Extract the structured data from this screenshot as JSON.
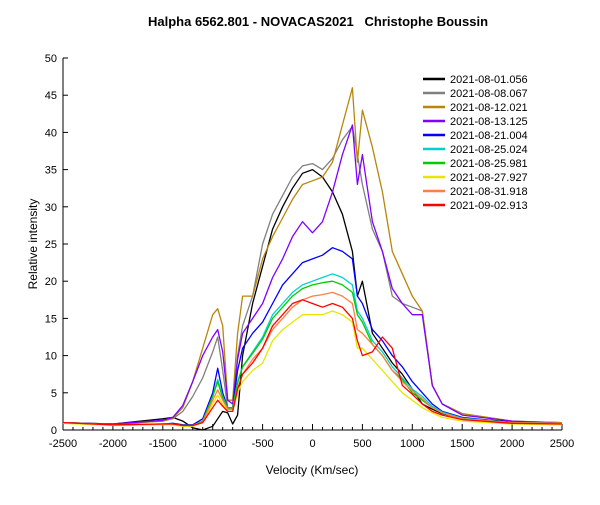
{
  "chart_data": {
    "type": "line",
    "title": "Halpha 6562.801 - NOVACAS2021   Christophe Boussin",
    "xlabel": "Velocity (Km/sec)",
    "ylabel": "Relative intensity",
    "xlim": [
      -2500,
      2500
    ],
    "ylim": [
      0,
      50
    ],
    "xticks": [
      -2500,
      -2000,
      -1500,
      -1000,
      -500,
      0,
      500,
      1000,
      1500,
      2000,
      2500
    ],
    "xtick_labels": [
      "-2500",
      "-2000",
      "-1500",
      "-1000",
      "-500",
      "0",
      "500",
      "1000",
      "1500",
      "2000",
      "2500"
    ],
    "yticks": [
      0,
      5,
      10,
      15,
      20,
      25,
      30,
      35,
      40,
      45,
      50
    ],
    "ytick_labels": [
      "0",
      "5",
      "10",
      "15",
      "20",
      "25",
      "30",
      "35",
      "40",
      "45",
      "50"
    ],
    "grid": false,
    "legend_position": "top-right",
    "x": [
      -2500,
      -2000,
      -1500,
      -1400,
      -1300,
      -1200,
      -1100,
      -1000,
      -950,
      -900,
      -850,
      -800,
      -750,
      -700,
      -600,
      -500,
      -400,
      -300,
      -200,
      -100,
      0,
      100,
      200,
      300,
      400,
      450,
      500,
      600,
      700,
      800,
      900,
      1000,
      1100,
      1200,
      1300,
      1500,
      2000,
      2500
    ],
    "series": [
      {
        "name": "2021-08-01.056",
        "color": "#000000",
        "values": [
          1,
          0.8,
          1.5,
          1.7,
          1.2,
          0.3,
          0,
          0.5,
          1.5,
          2.5,
          2.3,
          0.8,
          2,
          10,
          17,
          22,
          27,
          30,
          32.5,
          34.5,
          35,
          34,
          32,
          29,
          24,
          18,
          20,
          13,
          11,
          9,
          7.5,
          5.5,
          3.5,
          2.8,
          2.2,
          1.6,
          1.1,
          1
        ]
      },
      {
        "name": "2021-08-08.067",
        "color": "#808080",
        "values": [
          1,
          0.8,
          1.2,
          1.5,
          2.5,
          4.5,
          7,
          10.5,
          12.5,
          8,
          3,
          3,
          10,
          14,
          18,
          25,
          29,
          31.5,
          34,
          35.5,
          35.8,
          35,
          36.5,
          39,
          40.8,
          37,
          33,
          27,
          24,
          18,
          17,
          16.5,
          16,
          6,
          3.5,
          2.2,
          1.2,
          1
        ]
      },
      {
        "name": "2021-08-12.021",
        "color": "#b8860b",
        "values": [
          1,
          0.8,
          1.2,
          1.6,
          3,
          6.5,
          11,
          15.5,
          16.3,
          14,
          4,
          4,
          13,
          18,
          18,
          23,
          26,
          28.5,
          31,
          33,
          33.5,
          34,
          36,
          41,
          46,
          36,
          43,
          38,
          32,
          24,
          21,
          18,
          16,
          6,
          3.5,
          2.2,
          1.2,
          1
        ]
      },
      {
        "name": "2021-08-13.125",
        "color": "#8000ff",
        "values": [
          1,
          0.8,
          1.3,
          1.7,
          3.3,
          6.5,
          10,
          12.5,
          13.5,
          10.5,
          4,
          3.5,
          9.5,
          13,
          15,
          17,
          20.5,
          23,
          26,
          28,
          26.5,
          28,
          32,
          37,
          41,
          33,
          37,
          28,
          24,
          19,
          17,
          15.5,
          15.5,
          6,
          3.5,
          2,
          1.2,
          0.9
        ]
      },
      {
        "name": "2021-08-21.004",
        "color": "#0000ff",
        "values": [
          1,
          0.7,
          0.8,
          0.9,
          0.7,
          0.7,
          1.5,
          5,
          8.3,
          5,
          3,
          3,
          8,
          11,
          13,
          14.5,
          17,
          19.5,
          21,
          22.5,
          23,
          23.5,
          24.5,
          24,
          23,
          18,
          17,
          13.5,
          12,
          10,
          8.5,
          6.5,
          5,
          3.5,
          2.5,
          1.7,
          1,
          0.9
        ]
      },
      {
        "name": "2021-08-25.024",
        "color": "#00d0d0",
        "values": [
          1,
          0.7,
          0.8,
          0.8,
          0.6,
          0.6,
          1.2,
          4.5,
          6.8,
          4.5,
          3,
          3,
          6.5,
          8.5,
          10.5,
          12.5,
          15.5,
          17,
          18.5,
          19.5,
          20,
          20.5,
          21,
          20.5,
          19.5,
          16,
          15,
          12,
          10.5,
          8.5,
          7,
          5.5,
          4.5,
          3.2,
          2.4,
          1.6,
          1,
          0.9
        ]
      },
      {
        "name": "2021-08-25.981",
        "color": "#00cc00",
        "values": [
          1,
          0.7,
          0.8,
          0.8,
          0.6,
          0.6,
          1.2,
          4.5,
          6.5,
          4.3,
          3,
          3,
          6.3,
          8.5,
          10.3,
          12.2,
          15,
          16.5,
          18,
          19,
          19.5,
          19.8,
          20,
          19.5,
          18.5,
          15.5,
          14.5,
          11.5,
          10,
          8,
          6.8,
          5,
          4,
          3,
          2.3,
          1.5,
          1,
          0.9
        ]
      },
      {
        "name": "2021-08-27.927",
        "color": "#e6e600",
        "values": [
          0.9,
          0.6,
          0.7,
          0.7,
          0.5,
          0.5,
          1,
          3.5,
          4.7,
          3.5,
          2.5,
          2.5,
          5,
          6.5,
          8,
          9,
          12,
          13.5,
          14.5,
          15.5,
          15.5,
          15.5,
          16,
          15.5,
          14.5,
          11,
          11,
          9.5,
          8,
          6.5,
          5,
          4,
          3,
          2.3,
          1.7,
          1.2,
          0.8,
          0.7
        ]
      },
      {
        "name": "2021-08-31.918",
        "color": "#ff7f40",
        "values": [
          1,
          0.7,
          0.8,
          0.8,
          0.6,
          0.6,
          1.1,
          4,
          5.4,
          4,
          2.8,
          2.8,
          5.5,
          7.5,
          9.5,
          11,
          13.5,
          15,
          16.5,
          17.5,
          18,
          18.2,
          18.5,
          18,
          17,
          13.5,
          13,
          11.5,
          10,
          8,
          6.5,
          5.3,
          4.2,
          3,
          2.3,
          1.5,
          1,
          0.9
        ]
      },
      {
        "name": "2021-09-02.913",
        "color": "#ff0000",
        "values": [
          1,
          0.7,
          0.8,
          0.8,
          0.6,
          0.6,
          1,
          3,
          4,
          3.2,
          2.5,
          2.5,
          5.5,
          7.5,
          9,
          11,
          14,
          15.5,
          17,
          17.5,
          17,
          16.5,
          17,
          16.5,
          15,
          12,
          10,
          10.5,
          12.5,
          11,
          6,
          4.8,
          3.5,
          2.5,
          2,
          1.4,
          0.9,
          0.8
        ]
      }
    ]
  }
}
